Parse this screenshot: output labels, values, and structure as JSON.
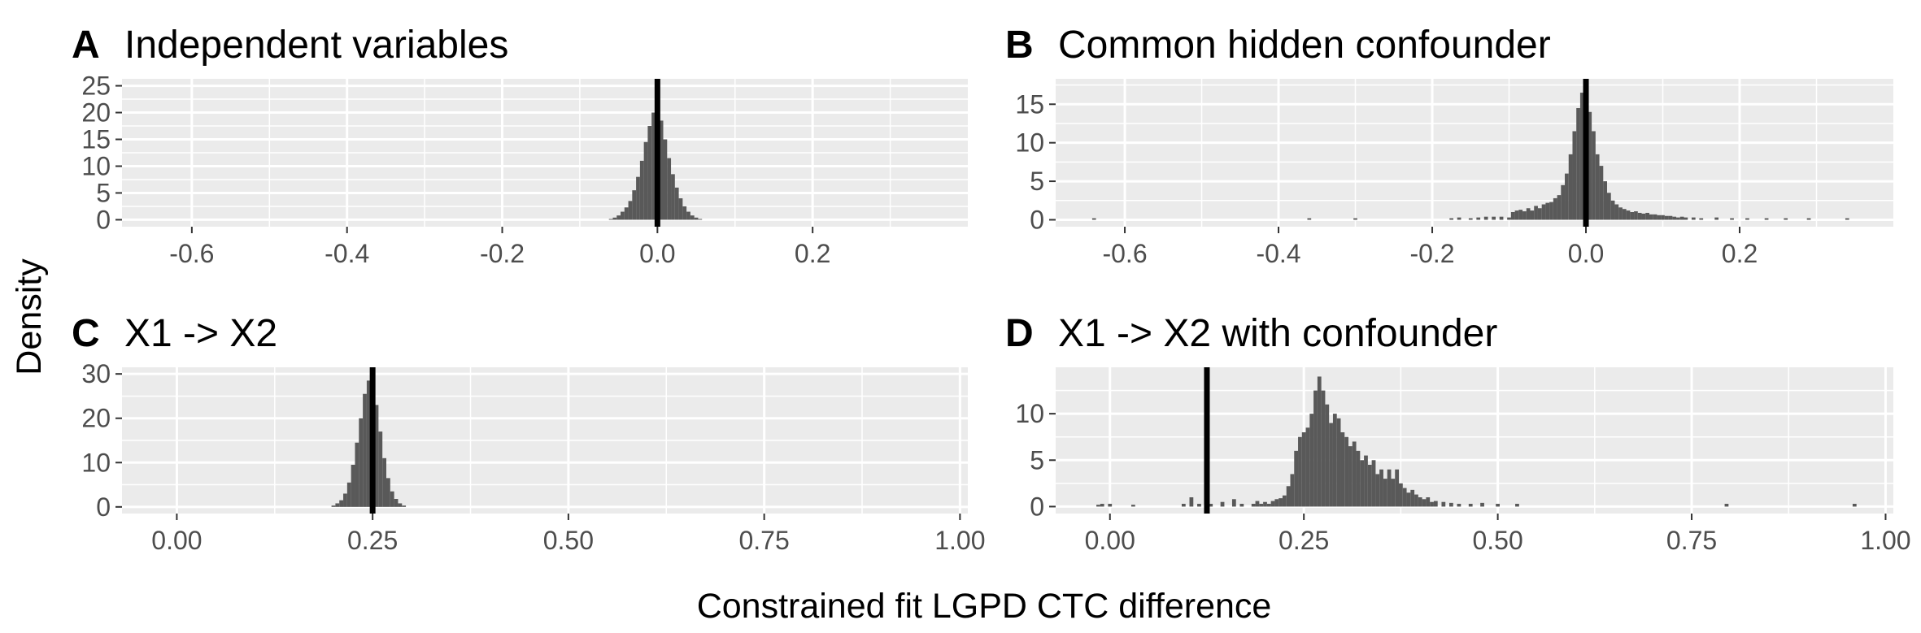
{
  "figure": {
    "y_axis_title": "Density",
    "x_axis_title": "Constrained fit LGPD CTC difference"
  },
  "panels": [
    {
      "tag": "A",
      "title": "Independent variables"
    },
    {
      "tag": "B",
      "title": "Common hidden confounder"
    },
    {
      "tag": "C",
      "title": "X1 -> X2"
    },
    {
      "tag": "D",
      "title": "X1 -> X2 with confounder"
    }
  ],
  "colors": {
    "panel_background": "#ebebeb",
    "grid": "#ffffff",
    "bars": "#595959",
    "reference_line": "#000000",
    "tick_text": "#4d4d4d"
  },
  "chart_data": [
    {
      "type": "bar",
      "subtype": "histogram",
      "title": "Independent variables",
      "xlabel": "Constrained fit LGPD CTC difference",
      "ylabel": "Density",
      "xlim": [
        -0.69,
        0.4
      ],
      "ylim": [
        -1.3,
        26.3
      ],
      "xticks": [
        -0.6,
        -0.4,
        -0.2,
        0.0,
        0.2
      ],
      "xtick_labels": [
        "-0.6",
        "-0.4",
        "-0.2",
        "0.0",
        "0.2"
      ],
      "yticks": [
        0,
        5,
        10,
        15,
        20,
        25
      ],
      "ytick_labels": [
        "0",
        "5",
        "10",
        "15",
        "20",
        "25"
      ],
      "bin_width": 0.005,
      "bins": [
        [
          -0.06,
          0.15
        ],
        [
          -0.055,
          0.4
        ],
        [
          -0.05,
          0.8
        ],
        [
          -0.045,
          1.5
        ],
        [
          -0.04,
          2.3
        ],
        [
          -0.035,
          3.5
        ],
        [
          -0.03,
          5.5
        ],
        [
          -0.025,
          8.0
        ],
        [
          -0.02,
          11.0
        ],
        [
          -0.015,
          14.5
        ],
        [
          -0.01,
          17.5
        ],
        [
          -0.005,
          20.0
        ],
        [
          0.0,
          21.0
        ],
        [
          0.005,
          18.5
        ],
        [
          0.01,
          15.0
        ],
        [
          0.015,
          11.5
        ],
        [
          0.02,
          8.5
        ],
        [
          0.025,
          6.0
        ],
        [
          0.03,
          4.0
        ],
        [
          0.035,
          2.5
        ],
        [
          0.04,
          1.5
        ],
        [
          0.045,
          0.8
        ],
        [
          0.05,
          0.4
        ],
        [
          0.055,
          0.15
        ]
      ],
      "vline": 0.0,
      "grid": true
    },
    {
      "type": "bar",
      "subtype": "histogram",
      "title": "Common hidden confounder",
      "xlabel": "Constrained fit LGPD CTC difference",
      "ylabel": "Density",
      "xlim": [
        -0.69,
        0.4
      ],
      "ylim": [
        -0.9,
        18.3
      ],
      "xticks": [
        -0.6,
        -0.4,
        -0.2,
        0.0,
        0.2
      ],
      "xtick_labels": [
        "-0.6",
        "-0.4",
        "-0.2",
        "0.0",
        "0.2"
      ],
      "yticks": [
        0,
        5,
        10,
        15
      ],
      "ytick_labels": [
        "0",
        "5",
        "10",
        "15"
      ],
      "bin_width": 0.005,
      "bins": [
        [
          -0.64,
          0.2
        ],
        [
          -0.36,
          0.2
        ],
        [
          -0.3,
          0.2
        ],
        [
          -0.175,
          0.2
        ],
        [
          -0.165,
          0.3
        ],
        [
          -0.15,
          0.2
        ],
        [
          -0.14,
          0.3
        ],
        [
          -0.13,
          0.4
        ],
        [
          -0.12,
          0.4
        ],
        [
          -0.11,
          0.4
        ],
        [
          -0.1,
          0.3
        ],
        [
          -0.095,
          1.0
        ],
        [
          -0.09,
          1.2
        ],
        [
          -0.085,
          1.3
        ],
        [
          -0.08,
          1.1
        ],
        [
          -0.075,
          1.5
        ],
        [
          -0.07,
          1.2
        ],
        [
          -0.065,
          1.8
        ],
        [
          -0.06,
          1.5
        ],
        [
          -0.055,
          2.0
        ],
        [
          -0.05,
          2.2
        ],
        [
          -0.045,
          2.3
        ],
        [
          -0.04,
          2.8
        ],
        [
          -0.035,
          3.2
        ],
        [
          -0.03,
          4.5
        ],
        [
          -0.025,
          6.0
        ],
        [
          -0.02,
          8.5
        ],
        [
          -0.015,
          11.5
        ],
        [
          -0.01,
          14.5
        ],
        [
          -0.005,
          16.5
        ],
        [
          0.0,
          17.0
        ],
        [
          0.005,
          14.0
        ],
        [
          0.01,
          11.5
        ],
        [
          0.015,
          8.5
        ],
        [
          0.02,
          7.0
        ],
        [
          0.025,
          5.0
        ],
        [
          0.03,
          3.5
        ],
        [
          0.035,
          2.5
        ],
        [
          0.04,
          2.0
        ],
        [
          0.045,
          1.6
        ],
        [
          0.05,
          1.4
        ],
        [
          0.055,
          1.2
        ],
        [
          0.06,
          1.0
        ],
        [
          0.065,
          1.1
        ],
        [
          0.07,
          0.9
        ],
        [
          0.075,
          0.8
        ],
        [
          0.08,
          0.9
        ],
        [
          0.085,
          0.7
        ],
        [
          0.09,
          0.7
        ],
        [
          0.095,
          0.6
        ],
        [
          0.1,
          0.6
        ],
        [
          0.105,
          0.5
        ],
        [
          0.11,
          0.5
        ],
        [
          0.115,
          0.4
        ],
        [
          0.12,
          0.3
        ],
        [
          0.125,
          0.4
        ],
        [
          0.13,
          0.3
        ],
        [
          0.14,
          0.3
        ],
        [
          0.15,
          0.2
        ],
        [
          0.17,
          0.3
        ],
        [
          0.19,
          0.2
        ],
        [
          0.21,
          0.2
        ],
        [
          0.235,
          0.2
        ],
        [
          0.26,
          0.2
        ],
        [
          0.29,
          0.2
        ],
        [
          0.34,
          0.2
        ]
      ],
      "vline": 0.0,
      "grid": true
    },
    {
      "type": "bar",
      "subtype": "histogram",
      "title": "X1 -> X2",
      "xlabel": "Constrained fit LGPD CTC difference",
      "ylabel": "Density",
      "xlim": [
        -0.07,
        1.01
      ],
      "ylim": [
        -1.5,
        31.5
      ],
      "xticks": [
        0.0,
        0.25,
        0.5,
        0.75,
        1.0
      ],
      "xtick_labels": [
        "0.00",
        "0.25",
        "0.50",
        "0.75",
        "1.00"
      ],
      "yticks": [
        0,
        10,
        20,
        30
      ],
      "ytick_labels": [
        "0",
        "10",
        "20",
        "30"
      ],
      "bin_width": 0.005,
      "bins": [
        [
          0.2,
          0.3
        ],
        [
          0.205,
          0.8
        ],
        [
          0.21,
          1.5
        ],
        [
          0.215,
          3.0
        ],
        [
          0.22,
          5.5
        ],
        [
          0.225,
          9.5
        ],
        [
          0.23,
          14.5
        ],
        [
          0.235,
          20.0
        ],
        [
          0.24,
          25.5
        ],
        [
          0.245,
          28.5
        ],
        [
          0.25,
          28.0
        ],
        [
          0.255,
          23.0
        ],
        [
          0.26,
          17.0
        ],
        [
          0.265,
          11.0
        ],
        [
          0.27,
          6.5
        ],
        [
          0.275,
          3.5
        ],
        [
          0.28,
          1.8
        ],
        [
          0.285,
          0.8
        ],
        [
          0.29,
          0.3
        ]
      ],
      "vline": 0.25,
      "grid": true
    },
    {
      "type": "bar",
      "subtype": "histogram",
      "title": "X1 -> X2 with confounder",
      "xlabel": "Constrained fit LGPD CTC difference",
      "ylabel": "Density",
      "xlim": [
        -0.07,
        1.01
      ],
      "ylim": [
        -0.75,
        15.0
      ],
      "xticks": [
        0.0,
        0.25,
        0.5,
        0.75,
        1.0
      ],
      "xtick_labels": [
        "0.00",
        "0.25",
        "0.50",
        "0.75",
        "1.00"
      ],
      "yticks": [
        0,
        5,
        10
      ],
      "ytick_labels": [
        "0",
        "5",
        "10"
      ],
      "bin_width": 0.005,
      "bins": [
        [
          -0.015,
          0.2
        ],
        [
          -0.01,
          0.3
        ],
        [
          0.0,
          0.3
        ],
        [
          0.03,
          0.2
        ],
        [
          0.095,
          0.3
        ],
        [
          0.105,
          1.0
        ],
        [
          0.115,
          0.3
        ],
        [
          0.13,
          0.3
        ],
        [
          0.145,
          0.5
        ],
        [
          0.16,
          0.8
        ],
        [
          0.17,
          0.3
        ],
        [
          0.185,
          0.3
        ],
        [
          0.19,
          0.6
        ],
        [
          0.195,
          0.3
        ],
        [
          0.2,
          0.5
        ],
        [
          0.205,
          0.3
        ],
        [
          0.21,
          0.6
        ],
        [
          0.215,
          0.8
        ],
        [
          0.22,
          0.9
        ],
        [
          0.225,
          1.2
        ],
        [
          0.23,
          2.2
        ],
        [
          0.235,
          3.5
        ],
        [
          0.24,
          6.0
        ],
        [
          0.245,
          7.5
        ],
        [
          0.25,
          8.0
        ],
        [
          0.255,
          8.5
        ],
        [
          0.26,
          10.0
        ],
        [
          0.265,
          12.5
        ],
        [
          0.27,
          14.0
        ],
        [
          0.275,
          12.5
        ],
        [
          0.28,
          11.0
        ],
        [
          0.285,
          9.0
        ],
        [
          0.29,
          10.0
        ],
        [
          0.295,
          9.5
        ],
        [
          0.3,
          8.0
        ],
        [
          0.305,
          7.5
        ],
        [
          0.31,
          6.5
        ],
        [
          0.315,
          7.0
        ],
        [
          0.32,
          6.0
        ],
        [
          0.325,
          5.0
        ],
        [
          0.33,
          5.5
        ],
        [
          0.335,
          4.5
        ],
        [
          0.34,
          5.0
        ],
        [
          0.345,
          3.5
        ],
        [
          0.35,
          4.0
        ],
        [
          0.355,
          3.0
        ],
        [
          0.36,
          4.0
        ],
        [
          0.365,
          3.0
        ],
        [
          0.37,
          4.0
        ],
        [
          0.375,
          2.5
        ],
        [
          0.38,
          2.0
        ],
        [
          0.385,
          1.5
        ],
        [
          0.39,
          1.8
        ],
        [
          0.395,
          1.3
        ],
        [
          0.4,
          1.0
        ],
        [
          0.405,
          0.8
        ],
        [
          0.41,
          1.0
        ],
        [
          0.415,
          0.5
        ],
        [
          0.42,
          0.6
        ],
        [
          0.43,
          0.5
        ],
        [
          0.44,
          0.4
        ],
        [
          0.45,
          0.3
        ],
        [
          0.465,
          0.3
        ],
        [
          0.48,
          0.4
        ],
        [
          0.5,
          0.3
        ],
        [
          0.525,
          0.3
        ],
        [
          0.795,
          0.3
        ],
        [
          0.96,
          0.3
        ]
      ],
      "vline": 0.125,
      "grid": true
    }
  ]
}
